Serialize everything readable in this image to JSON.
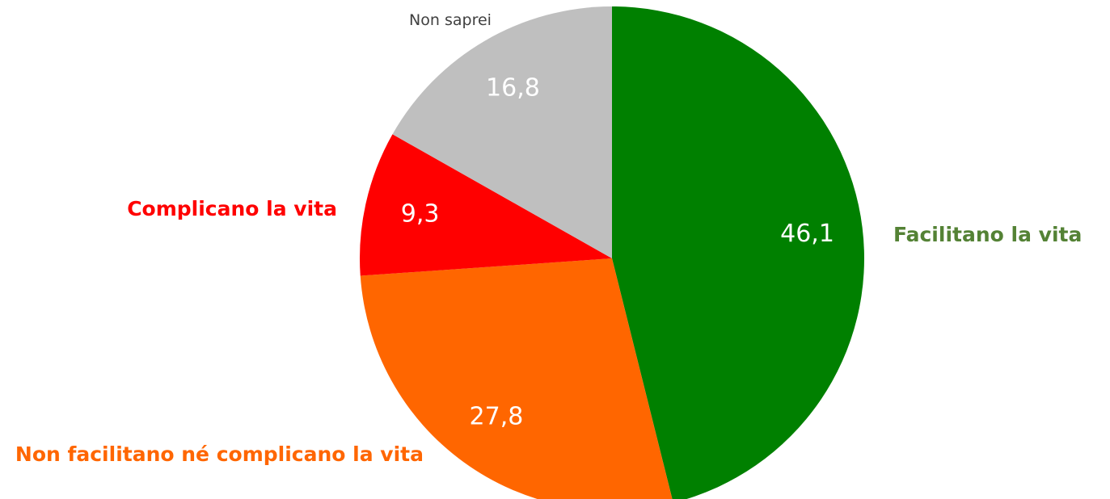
{
  "chart_data": {
    "type": "pie",
    "categories": [
      "Facilitano la vita",
      "Non facilitano né complicano la vita",
      "Complicano la vita",
      "Non saprei"
    ],
    "values": [
      46.1,
      27.8,
      9.3,
      16.8
    ],
    "value_labels": [
      "46,1",
      "27,8",
      "9,3",
      "16,8"
    ],
    "colors": [
      "#008000",
      "#ff6600",
      "#ff0000",
      "#bfbfbf"
    ],
    "label_colors": [
      "#548235",
      "#ff6600",
      "#ff0000",
      "#404040"
    ]
  }
}
